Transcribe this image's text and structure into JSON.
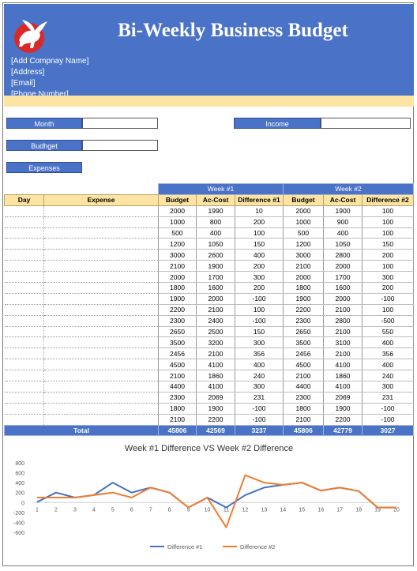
{
  "header": {
    "title": "Bi-Weekly Business Budget",
    "company_name": "[Add Compnay Name]",
    "address": "[Address]",
    "email": "[Email]",
    "phone": "[Phone Number]"
  },
  "fields": {
    "month_label": "Month",
    "income_label": "Income",
    "budget_label": "Budhget",
    "expenses_label": "Expenses"
  },
  "table": {
    "week1_label": "Week #1",
    "week2_label": "Week #2",
    "columns": [
      "Day",
      "Expense",
      "Budget",
      "Ac-Cost",
      "Difference #1",
      "Budget",
      "Ac-Cost",
      "Difference #2"
    ],
    "rows": [
      [
        "2000",
        "1990",
        "10",
        "2000",
        "1900",
        "100"
      ],
      [
        "1000",
        "800",
        "200",
        "1000",
        "900",
        "100"
      ],
      [
        "500",
        "400",
        "100",
        "500",
        "400",
        "100"
      ],
      [
        "1200",
        "1050",
        "150",
        "1200",
        "1050",
        "150"
      ],
      [
        "3000",
        "2600",
        "400",
        "3000",
        "2800",
        "200"
      ],
      [
        "2100",
        "1900",
        "200",
        "2100",
        "2000",
        "100"
      ],
      [
        "2000",
        "1700",
        "300",
        "2000",
        "1700",
        "300"
      ],
      [
        "1800",
        "1600",
        "200",
        "1800",
        "1600",
        "200"
      ],
      [
        "1900",
        "2000",
        "-100",
        "1900",
        "2000",
        "-100"
      ],
      [
        "2200",
        "2100",
        "100",
        "2200",
        "2100",
        "100"
      ],
      [
        "2300",
        "2400",
        "-100",
        "2300",
        "2800",
        "-500"
      ],
      [
        "2650",
        "2500",
        "150",
        "2650",
        "2100",
        "550"
      ],
      [
        "3500",
        "3200",
        "300",
        "3500",
        "3100",
        "400"
      ],
      [
        "2456",
        "2100",
        "356",
        "2456",
        "2100",
        "356"
      ],
      [
        "4500",
        "4100",
        "400",
        "4500",
        "4100",
        "400"
      ],
      [
        "2100",
        "1860",
        "240",
        "2100",
        "1860",
        "240"
      ],
      [
        "4400",
        "4100",
        "300",
        "4400",
        "4100",
        "300"
      ],
      [
        "2300",
        "2069",
        "231",
        "2300",
        "2069",
        "231"
      ],
      [
        "1800",
        "1900",
        "-100",
        "1800",
        "1900",
        "-100"
      ],
      [
        "2100",
        "2200",
        "-100",
        "2100",
        "2200",
        "-100"
      ]
    ],
    "total": {
      "label": "Total",
      "values": [
        "45806",
        "42569",
        "3237",
        "45806",
        "42779",
        "3027"
      ]
    }
  },
  "chart_data": {
    "type": "line",
    "title": "Week #1 Difference VS Week #2 Difference",
    "x": [
      1,
      2,
      3,
      4,
      5,
      6,
      7,
      8,
      9,
      10,
      11,
      12,
      13,
      14,
      15,
      16,
      17,
      18,
      19,
      20
    ],
    "series": [
      {
        "name": "Difference #1",
        "color": "#4472c4",
        "values": [
          10,
          200,
          100,
          150,
          400,
          200,
          300,
          200,
          -100,
          100,
          -100,
          150,
          300,
          356,
          400,
          240,
          300,
          231,
          -100,
          -100
        ]
      },
      {
        "name": "Difference #2",
        "color": "#ed7d31",
        "values": [
          100,
          100,
          100,
          150,
          200,
          100,
          300,
          200,
          -100,
          100,
          -500,
          550,
          400,
          356,
          400,
          240,
          300,
          231,
          -100,
          -100
        ]
      }
    ],
    "y_ticks": [
      "800",
      "600",
      "400",
      "200",
      "0",
      "-200",
      "-400",
      "-600"
    ],
    "ylim": [
      -600,
      800
    ],
    "grid": false,
    "legend": "bottom"
  }
}
